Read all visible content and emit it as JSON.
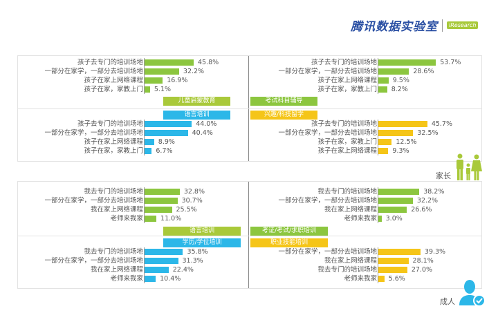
{
  "header": {
    "title": "腾讯数据实验室",
    "partner_logo": "iResearch"
  },
  "colors": {
    "green": "#8cc63f",
    "lime": "#a9c93a",
    "blue": "#2cb7e8",
    "yellow": "#f5c518"
  },
  "personas": {
    "parent": "家长",
    "adult": "成人"
  },
  "chart_data": [
    {
      "type": "bar",
      "group": "家长",
      "title": "儿童启蒙教育",
      "color": "green",
      "tag_color": "lime",
      "categories": [
        "孩子去专门的培训场地",
        "一部分在家学，一部分去培训场地",
        "孩子在家上网络课程",
        "孩子在家，家教上门"
      ],
      "values": [
        45.8,
        32.2,
        16.9,
        5.1
      ],
      "labels": [
        "45.8%",
        "32.2%",
        "16.9%",
        "5.1%"
      ]
    },
    {
      "type": "bar",
      "group": "家长",
      "title": "考试科目辅导",
      "color": "green",
      "tag_color": "green",
      "categories": [
        "孩子去专门的培训场地",
        "一部分在家学，一部分去培训场地",
        "孩子在家上网络课程",
        "孩子在家，家教上门"
      ],
      "values": [
        53.7,
        28.6,
        9.5,
        8.2
      ],
      "labels": [
        "53.7%",
        "28.6%",
        "9.5%",
        "8.2%"
      ]
    },
    {
      "type": "bar",
      "group": "家长",
      "title": "语言培训",
      "color": "blue",
      "tag_color": "blue",
      "categories": [
        "孩子去专门的培训场地",
        "一部分在家学，一部分去培训场地",
        "孩子在家上网络课程",
        "孩子在家，家教上门"
      ],
      "values": [
        44.0,
        40.4,
        8.9,
        6.7
      ],
      "labels": [
        "44.0%",
        "40.4%",
        "8.9%",
        "6.7%"
      ]
    },
    {
      "type": "bar",
      "group": "家长",
      "title": "兴趣/科技留学",
      "color": "yellow",
      "tag_color": "yellow",
      "categories": [
        "孩子去专门的培训场地",
        "一部分在家学，一部分去培训场地",
        "孩子在家，家教上门",
        "孩子在家上网络课程"
      ],
      "values": [
        45.7,
        32.5,
        12.5,
        9.3
      ],
      "labels": [
        "45.7%",
        "32.5%",
        "12.5%",
        "9.3%"
      ]
    },
    {
      "type": "bar",
      "group": "成人",
      "title": "语言培训",
      "color": "green",
      "tag_color": "lime",
      "categories": [
        "我去专门的培训场地",
        "一部分在家学，一部分去培训场地",
        "我在家上网络课程",
        "老师来我家"
      ],
      "values": [
        32.8,
        30.7,
        25.5,
        11.0
      ],
      "labels": [
        "32.8%",
        "30.7%",
        "25.5%",
        "11.0%"
      ]
    },
    {
      "type": "bar",
      "group": "成人",
      "title": "考证/考试/求职培训",
      "color": "green",
      "tag_color": "green",
      "categories": [
        "我去专门的培训场地",
        "一部分在家学，一部分去培训场地",
        "我在家上网络课程",
        "老师来我家"
      ],
      "values": [
        38.2,
        32.2,
        26.6,
        3.0
      ],
      "labels": [
        "38.2%",
        "32.2%",
        "26.6%",
        "3.0%"
      ]
    },
    {
      "type": "bar",
      "group": "成人",
      "title": "学历/学位培训",
      "color": "blue",
      "tag_color": "blue",
      "categories": [
        "我去专门的培训场地",
        "一部分在家学，一部分去培训场地",
        "我在家上网络课程",
        "老师来我家"
      ],
      "values": [
        35.8,
        31.3,
        22.4,
        10.4
      ],
      "labels": [
        "35.8%",
        "31.3%",
        "22.4%",
        "10.4%"
      ]
    },
    {
      "type": "bar",
      "group": "成人",
      "title": "职业技能培训",
      "color": "yellow",
      "tag_color": "yellow",
      "categories": [
        "一部分在家学，一部分去培训场地",
        "我在家上网络课程",
        "我去专门的培训场地",
        "老师来我家"
      ],
      "values": [
        39.3,
        28.1,
        27.0,
        5.6
      ],
      "labels": [
        "39.3%",
        "28.1%",
        "27.0%",
        "5.6%"
      ]
    }
  ]
}
